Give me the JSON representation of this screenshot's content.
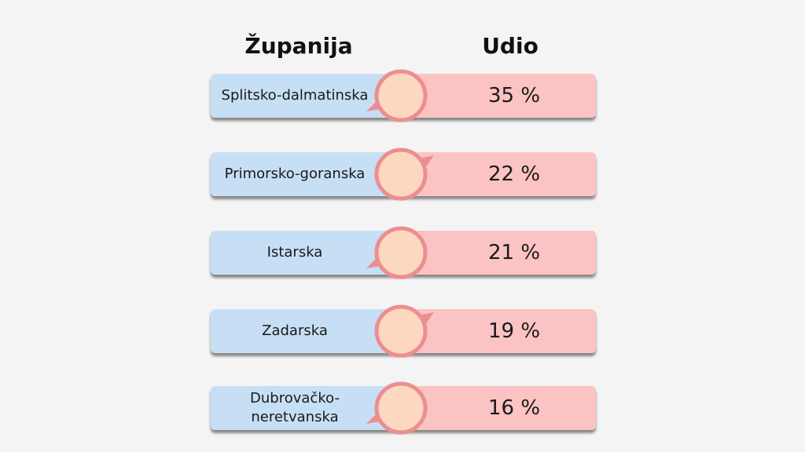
{
  "chart_data": {
    "type": "table",
    "headers": {
      "county": "Županija",
      "share": "Udio"
    },
    "rows": [
      {
        "county": "Splitsko-dalmatinska",
        "share": "35 %",
        "value": 35
      },
      {
        "county": "Primorsko-goranska",
        "share": "22 %",
        "value": 22
      },
      {
        "county": "Istarska",
        "share": "21 %",
        "value": 21
      },
      {
        "county": "Zadarska",
        "share": "19 %",
        "value": 19
      },
      {
        "county": "Dubrovačko-\nneretvanska",
        "share": "16 %",
        "value": 16
      }
    ],
    "colors": {
      "county_bg": "#c6dff5",
      "share_bg": "#fbc3c3",
      "bubble_fill": "#fdd8c0",
      "bubble_ring": "#ec8e90",
      "background": "#f4f4f4"
    }
  }
}
